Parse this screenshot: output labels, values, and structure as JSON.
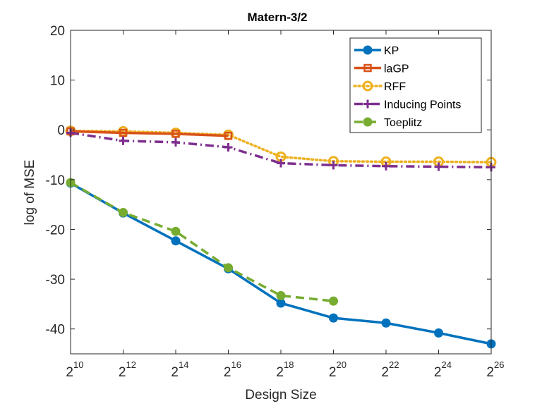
{
  "chart_data": {
    "type": "line",
    "title": "Matern-3/2",
    "xlabel": "Design Size",
    "ylabel": "log of MSE",
    "x_base": "2",
    "x_exponents": [
      10,
      12,
      14,
      16,
      18,
      20,
      22,
      24,
      26
    ],
    "xlim": [
      10,
      26
    ],
    "ylim": [
      -45,
      20
    ],
    "yticks": [
      20,
      10,
      0,
      -10,
      -20,
      -30,
      -40
    ],
    "grid": false,
    "legend_position": "top-right",
    "series": [
      {
        "name": "KP",
        "color": "#0072BD",
        "line_style": "solid",
        "marker": "filled-circle",
        "x": [
          10,
          12,
          14,
          16,
          18,
          20,
          22,
          24,
          26
        ],
        "y": [
          -10.7,
          -16.7,
          -22.3,
          -27.9,
          -34.8,
          -37.8,
          -38.8,
          -40.8,
          -43.0
        ]
      },
      {
        "name": "laGP",
        "color": "#D95319",
        "line_style": "solid",
        "marker": "square",
        "x": [
          10,
          12,
          14,
          16
        ],
        "y": [
          -0.3,
          -0.6,
          -0.8,
          -1.2
        ]
      },
      {
        "name": "RFF",
        "color": "#EDB120",
        "line_style": "dotted",
        "marker": "open-circle",
        "x": [
          10,
          12,
          14,
          16,
          18,
          20,
          22,
          24,
          26
        ],
        "y": [
          -0.2,
          -0.3,
          -0.6,
          -1.0,
          -5.4,
          -6.3,
          -6.4,
          -6.4,
          -6.5
        ]
      },
      {
        "name": "Inducing Points",
        "color": "#7E2F8E",
        "line_style": "dashdot",
        "marker": "plus",
        "x": [
          10,
          12,
          14,
          16,
          18,
          20,
          22,
          24,
          26
        ],
        "y": [
          -0.6,
          -2.2,
          -2.5,
          -3.5,
          -6.7,
          -7.1,
          -7.3,
          -7.4,
          -7.5
        ]
      },
      {
        "name": "Toeplitz",
        "color": "#77AC30",
        "line_style": "dashed",
        "marker": "filled-circle",
        "x": [
          10,
          12,
          14,
          16,
          18,
          20
        ],
        "y": [
          -10.6,
          -16.6,
          -20.4,
          -27.7,
          -33.3,
          -34.4
        ]
      }
    ]
  }
}
